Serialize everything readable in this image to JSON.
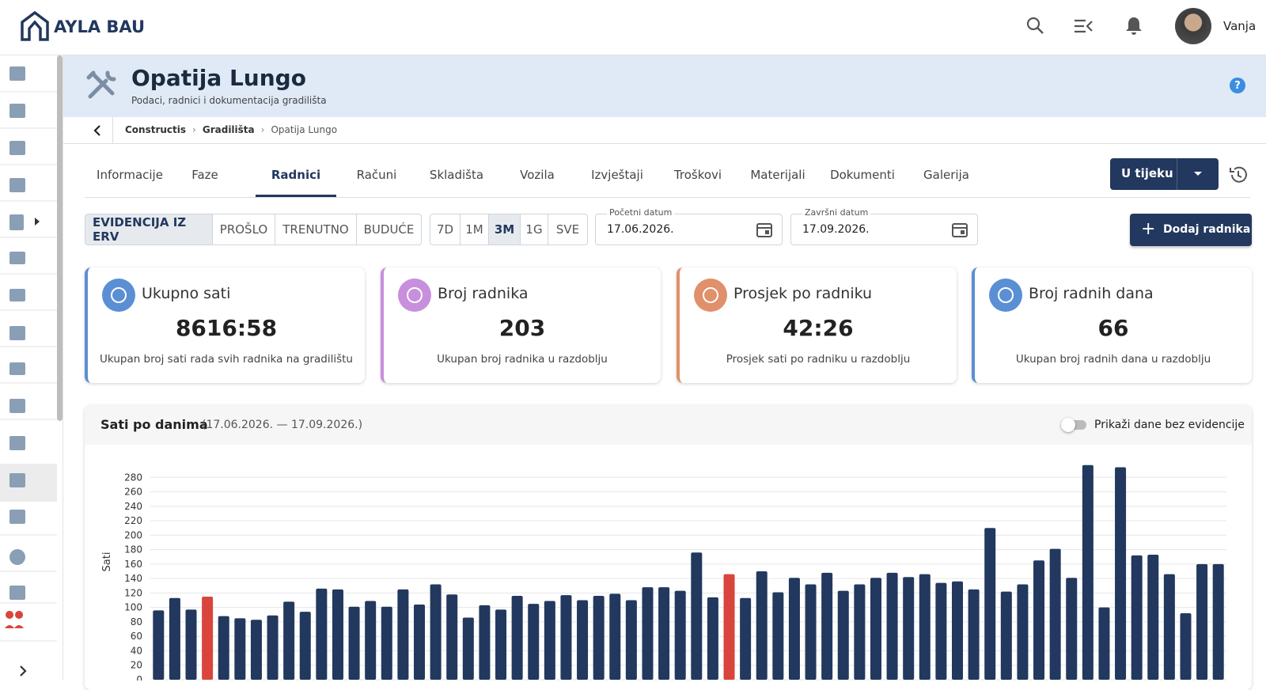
{
  "header": {
    "brand": "AYLA BAU",
    "user": "Vanja"
  },
  "page": {
    "title": "Opatija Lungo",
    "subtitle": "Podaci, radnici i dokumentacija gradilišta"
  },
  "breadcrumbs": [
    "Constructis",
    "Gradilišta",
    "Opatija Lungo"
  ],
  "tabs": [
    "Informacije",
    "Faze",
    "Radnici",
    "Računi",
    "Skladišta",
    "Vozila",
    "Izvještaji",
    "Troškovi",
    "Materijali",
    "Dokumenti",
    "Galerija"
  ],
  "active_tab": 2,
  "status": "U tijeku",
  "filters": {
    "modes": [
      "EVIDENCIJA IZ ERV",
      "PROŠLO",
      "TRENUTNO",
      "BUDUĆE"
    ],
    "active_mode": 0,
    "ranges": [
      "7D",
      "1M",
      "3M",
      "1G",
      "SVE"
    ],
    "active_range": 2,
    "start_label": "Početni datum",
    "start": "17.06.2026.",
    "end_label": "Završni datum",
    "end": "17.09.2026."
  },
  "add_button": "Dodaj radnika",
  "cards": [
    {
      "title": "Ukupno sati",
      "value": "8616:58",
      "note": "Ukupan broj sati rada svih radnika na gradilištu",
      "color": "#5b8fd4"
    },
    {
      "title": "Broj radnika",
      "value": "203",
      "note": "Ukupan broj radnika u razdoblju",
      "color": "#c78fdc"
    },
    {
      "title": "Prosjek po radniku",
      "value": "42:26",
      "note": "Prosjek sati po radniku u razdoblju",
      "color": "#e0906a"
    },
    {
      "title": "Broj radnih dana",
      "value": "66",
      "note": "Ukupan broj radnih dana u razdoblju",
      "color": "#5b8fd4"
    }
  ],
  "chart_panel": {
    "title": "Sati po danima",
    "range": "(17.06.2026. — 17.09.2026.)",
    "toggle": "Prikaži dane bez evidencije"
  },
  "chart_data": {
    "type": "bar",
    "y_label": "Sati",
    "values": [
      96,
      113,
      97,
      115,
      88,
      85,
      83,
      89,
      108,
      94,
      126,
      125,
      101,
      109,
      101,
      125,
      104,
      132,
      118,
      86,
      103,
      97,
      116,
      105,
      109,
      117,
      110,
      116,
      119,
      110,
      128,
      128,
      123,
      176,
      114,
      146,
      113,
      150,
      121,
      141,
      132,
      148,
      123,
      132,
      141,
      148,
      142,
      146,
      134,
      136,
      125,
      210,
      122,
      132,
      165,
      181,
      141,
      297,
      100,
      294,
      172,
      173,
      146,
      92,
      160,
      160
    ],
    "colors": [
      "#22385e",
      "#22385e",
      "#22385e",
      "#d9453d",
      "#22385e",
      "#22385e",
      "#22385e",
      "#22385e",
      "#22385e",
      "#22385e",
      "#22385e",
      "#22385e",
      "#22385e",
      "#22385e",
      "#22385e",
      "#22385e",
      "#22385e",
      "#22385e",
      "#22385e",
      "#22385e",
      "#22385e",
      "#22385e",
      "#22385e",
      "#22385e",
      "#22385e",
      "#22385e",
      "#22385e",
      "#22385e",
      "#22385e",
      "#22385e",
      "#22385e",
      "#22385e",
      "#22385e",
      "#22385e",
      "#22385e",
      "#d9453d",
      "#22385e",
      "#22385e",
      "#22385e",
      "#22385e",
      "#22385e",
      "#22385e",
      "#22385e",
      "#22385e",
      "#22385e",
      "#22385e",
      "#22385e",
      "#22385e",
      "#22385e",
      "#22385e",
      "#22385e",
      "#22385e",
      "#22385e",
      "#22385e",
      "#22385e",
      "#22385e",
      "#22385e",
      "#22385e",
      "#22385e",
      "#22385e",
      "#22385e",
      "#22385e",
      "#22385e",
      "#22385e",
      "#22385e",
      "#22385e"
    ],
    "ylim": [
      0,
      300
    ],
    "yticks": [
      0,
      20,
      40,
      60,
      80,
      100,
      120,
      140,
      160,
      180,
      200,
      220,
      240,
      260,
      280
    ],
    "grid": true
  }
}
